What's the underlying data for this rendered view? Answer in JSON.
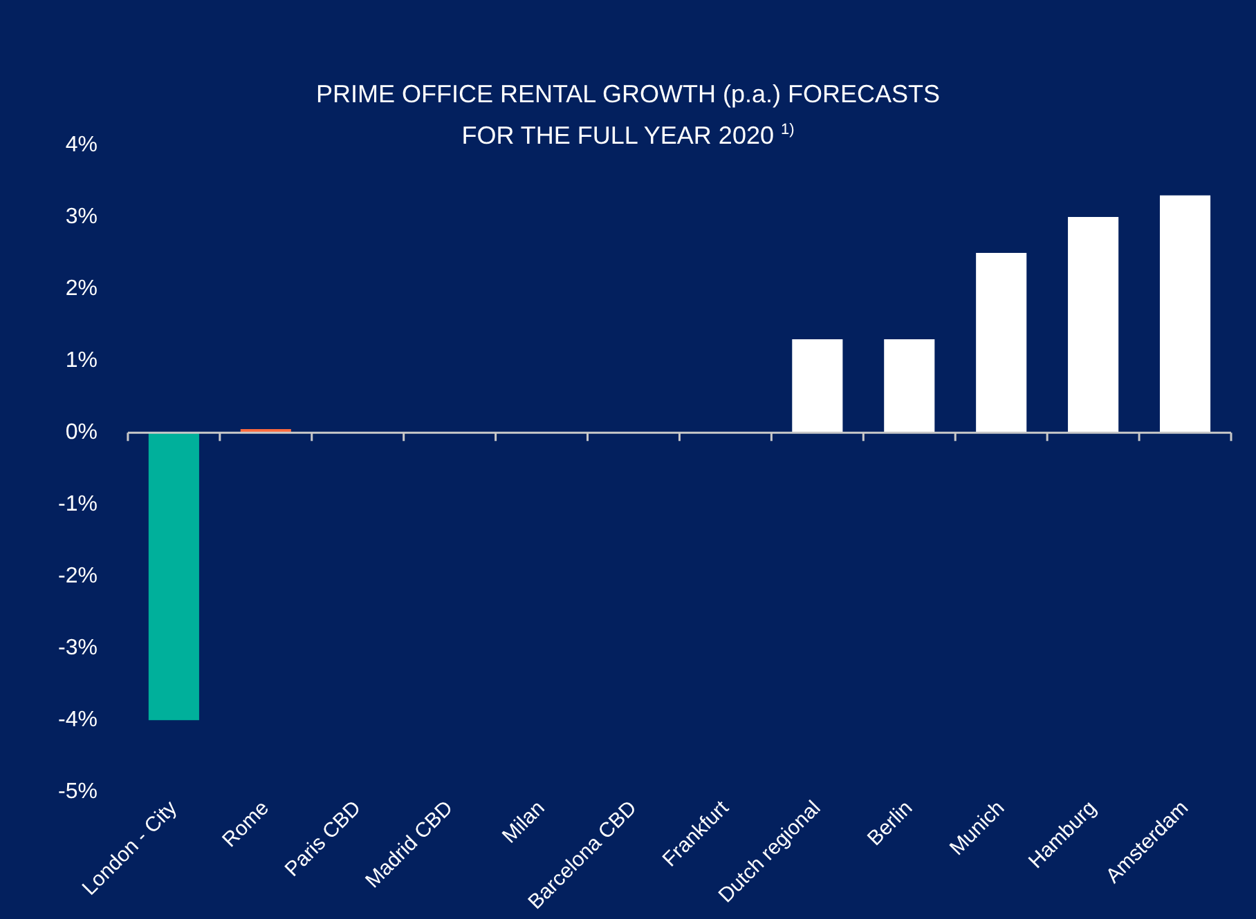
{
  "chart_data": {
    "type": "bar",
    "title": "PRIME OFFICE RENTAL GROWTH (p.a.) FORECASTS\nFOR THE FULL YEAR 2020 $^{1)}$",
    "categories": [
      "London - City",
      "Rome",
      "Paris CBD",
      "Madrid CBD",
      "Milan",
      "Barcelona CBD",
      "Frankfurt",
      "Dutch regional",
      "Berlin",
      "Munich",
      "Hamburg",
      "Amsterdam"
    ],
    "values": [
      -4,
      0.05,
      0,
      0,
      0,
      0,
      0,
      1.3,
      1.3,
      2.5,
      3.0,
      3.3
    ],
    "colors": [
      "#00b09b",
      "#ff6a3d",
      "#ffffff",
      "#ffffff",
      "#ffffff",
      "#ffffff",
      "#ffffff",
      "#ffffff",
      "#ffffff",
      "#ffffff",
      "#ffffff",
      "#ffffff"
    ],
    "ylim": [
      -5,
      4
    ],
    "yticks": [
      {
        "value": -5,
        "label": "-5%"
      },
      {
        "value": -4,
        "label": "-4%"
      },
      {
        "value": -3,
        "label": "-3%"
      },
      {
        "value": -2,
        "label": "-2%"
      },
      {
        "value": -1,
        "label": "-1%"
      },
      {
        "value": 0,
        "label": "0%"
      },
      {
        "value": 1,
        "label": "1%"
      },
      {
        "value": 2,
        "label": "2%"
      },
      {
        "value": 3,
        "label": "3%"
      },
      {
        "value": 4,
        "label": "4%"
      }
    ],
    "legend": false
  }
}
